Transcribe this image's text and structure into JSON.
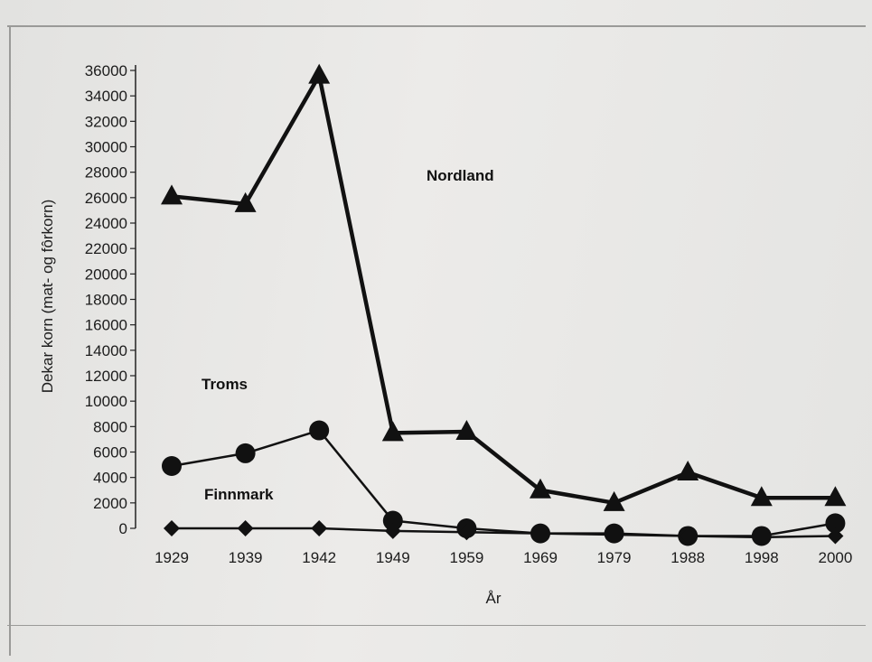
{
  "chart_data": {
    "type": "line",
    "title": "",
    "xlabel": "År",
    "ylabel": "Dekar korn (mat- og fôrkorn)",
    "categories": [
      "1929",
      "1939",
      "1942",
      "1949",
      "1959",
      "1969",
      "1979",
      "1988",
      "1998",
      "2000"
    ],
    "ylim": [
      0,
      36000
    ],
    "yticks": [
      0,
      2000,
      4000,
      6000,
      8000,
      10000,
      12000,
      14000,
      16000,
      18000,
      20000,
      22000,
      24000,
      26000,
      28000,
      30000,
      32000,
      34000,
      36000
    ],
    "grid": false,
    "legend": "none",
    "series": [
      {
        "name": "Nordland",
        "marker": "triangle",
        "color": "#111111",
        "values": [
          26100,
          25500,
          35600,
          7500,
          7600,
          3000,
          2000,
          4400,
          2400,
          2400
        ]
      },
      {
        "name": "Troms",
        "marker": "circle",
        "color": "#111111",
        "values": [
          4900,
          5900,
          7700,
          600,
          0,
          -400,
          -400,
          -600,
          -600,
          400
        ]
      },
      {
        "name": "Finnmark",
        "marker": "diamond",
        "color": "#111111",
        "values": [
          0,
          0,
          0,
          -200,
          -300,
          -400,
          -500,
          -600,
          -700,
          -600
        ]
      }
    ]
  }
}
